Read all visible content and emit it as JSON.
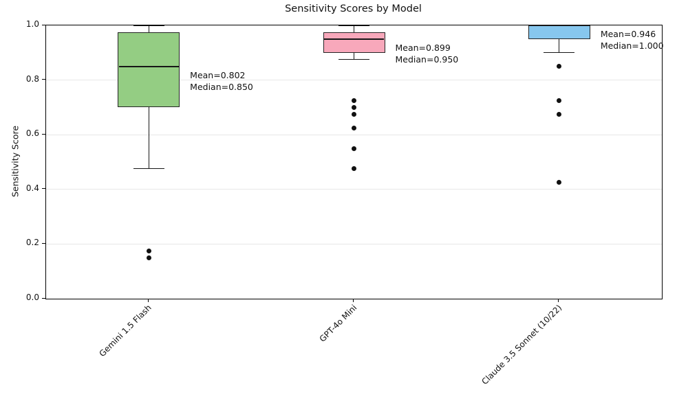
{
  "title": "Sensitivity Scores by Model",
  "chart_data": {
    "type": "box",
    "title": "Sensitivity Scores by Model",
    "xlabel": "",
    "ylabel": "Sensitivity Score",
    "ylim": [
      0.0,
      1.0
    ],
    "yticks": [
      0.0,
      0.2,
      0.4,
      0.6,
      0.8,
      1.0
    ],
    "ytick_labels": [
      "0.0",
      "0.2",
      "0.4",
      "0.6",
      "0.8",
      "1.0"
    ],
    "grid": "horizontal-light",
    "legend": "none",
    "categories": [
      "Gemini 1.5 Flash",
      "GPT-4o Mini",
      "Claude 3.5 Sonnet (10/22)"
    ],
    "series": [
      {
        "name": "Gemini 1.5 Flash",
        "box_color": "#94cd83",
        "whisker_low": 0.475,
        "q1": 0.7,
        "median": 0.85,
        "q3": 0.975,
        "whisker_high": 1.0,
        "outliers": [
          0.175,
          0.15
        ],
        "mean": 0.802,
        "annotation_lines": [
          "Mean=0.802",
          "Median=0.850"
        ]
      },
      {
        "name": "GPT-4o Mini",
        "box_color": "#f8a8bb",
        "whisker_low": 0.875,
        "q1": 0.9,
        "median": 0.95,
        "q3": 0.975,
        "whisker_high": 1.0,
        "outliers": [
          0.725,
          0.7,
          0.675,
          0.625,
          0.55,
          0.475
        ],
        "mean": 0.899,
        "annotation_lines": [
          "Mean=0.899",
          "Median=0.950"
        ]
      },
      {
        "name": "Claude 3.5 Sonnet (10/22)",
        "box_color": "#87c7ee",
        "whisker_low": 0.9,
        "q1": 0.95,
        "median": 1.0,
        "q3": 1.0,
        "whisker_high": 1.0,
        "outliers": [
          0.85,
          0.725,
          0.675,
          0.425
        ],
        "mean": 0.946,
        "annotation_lines": [
          "Mean=0.946",
          "Median=1.000"
        ]
      }
    ]
  }
}
